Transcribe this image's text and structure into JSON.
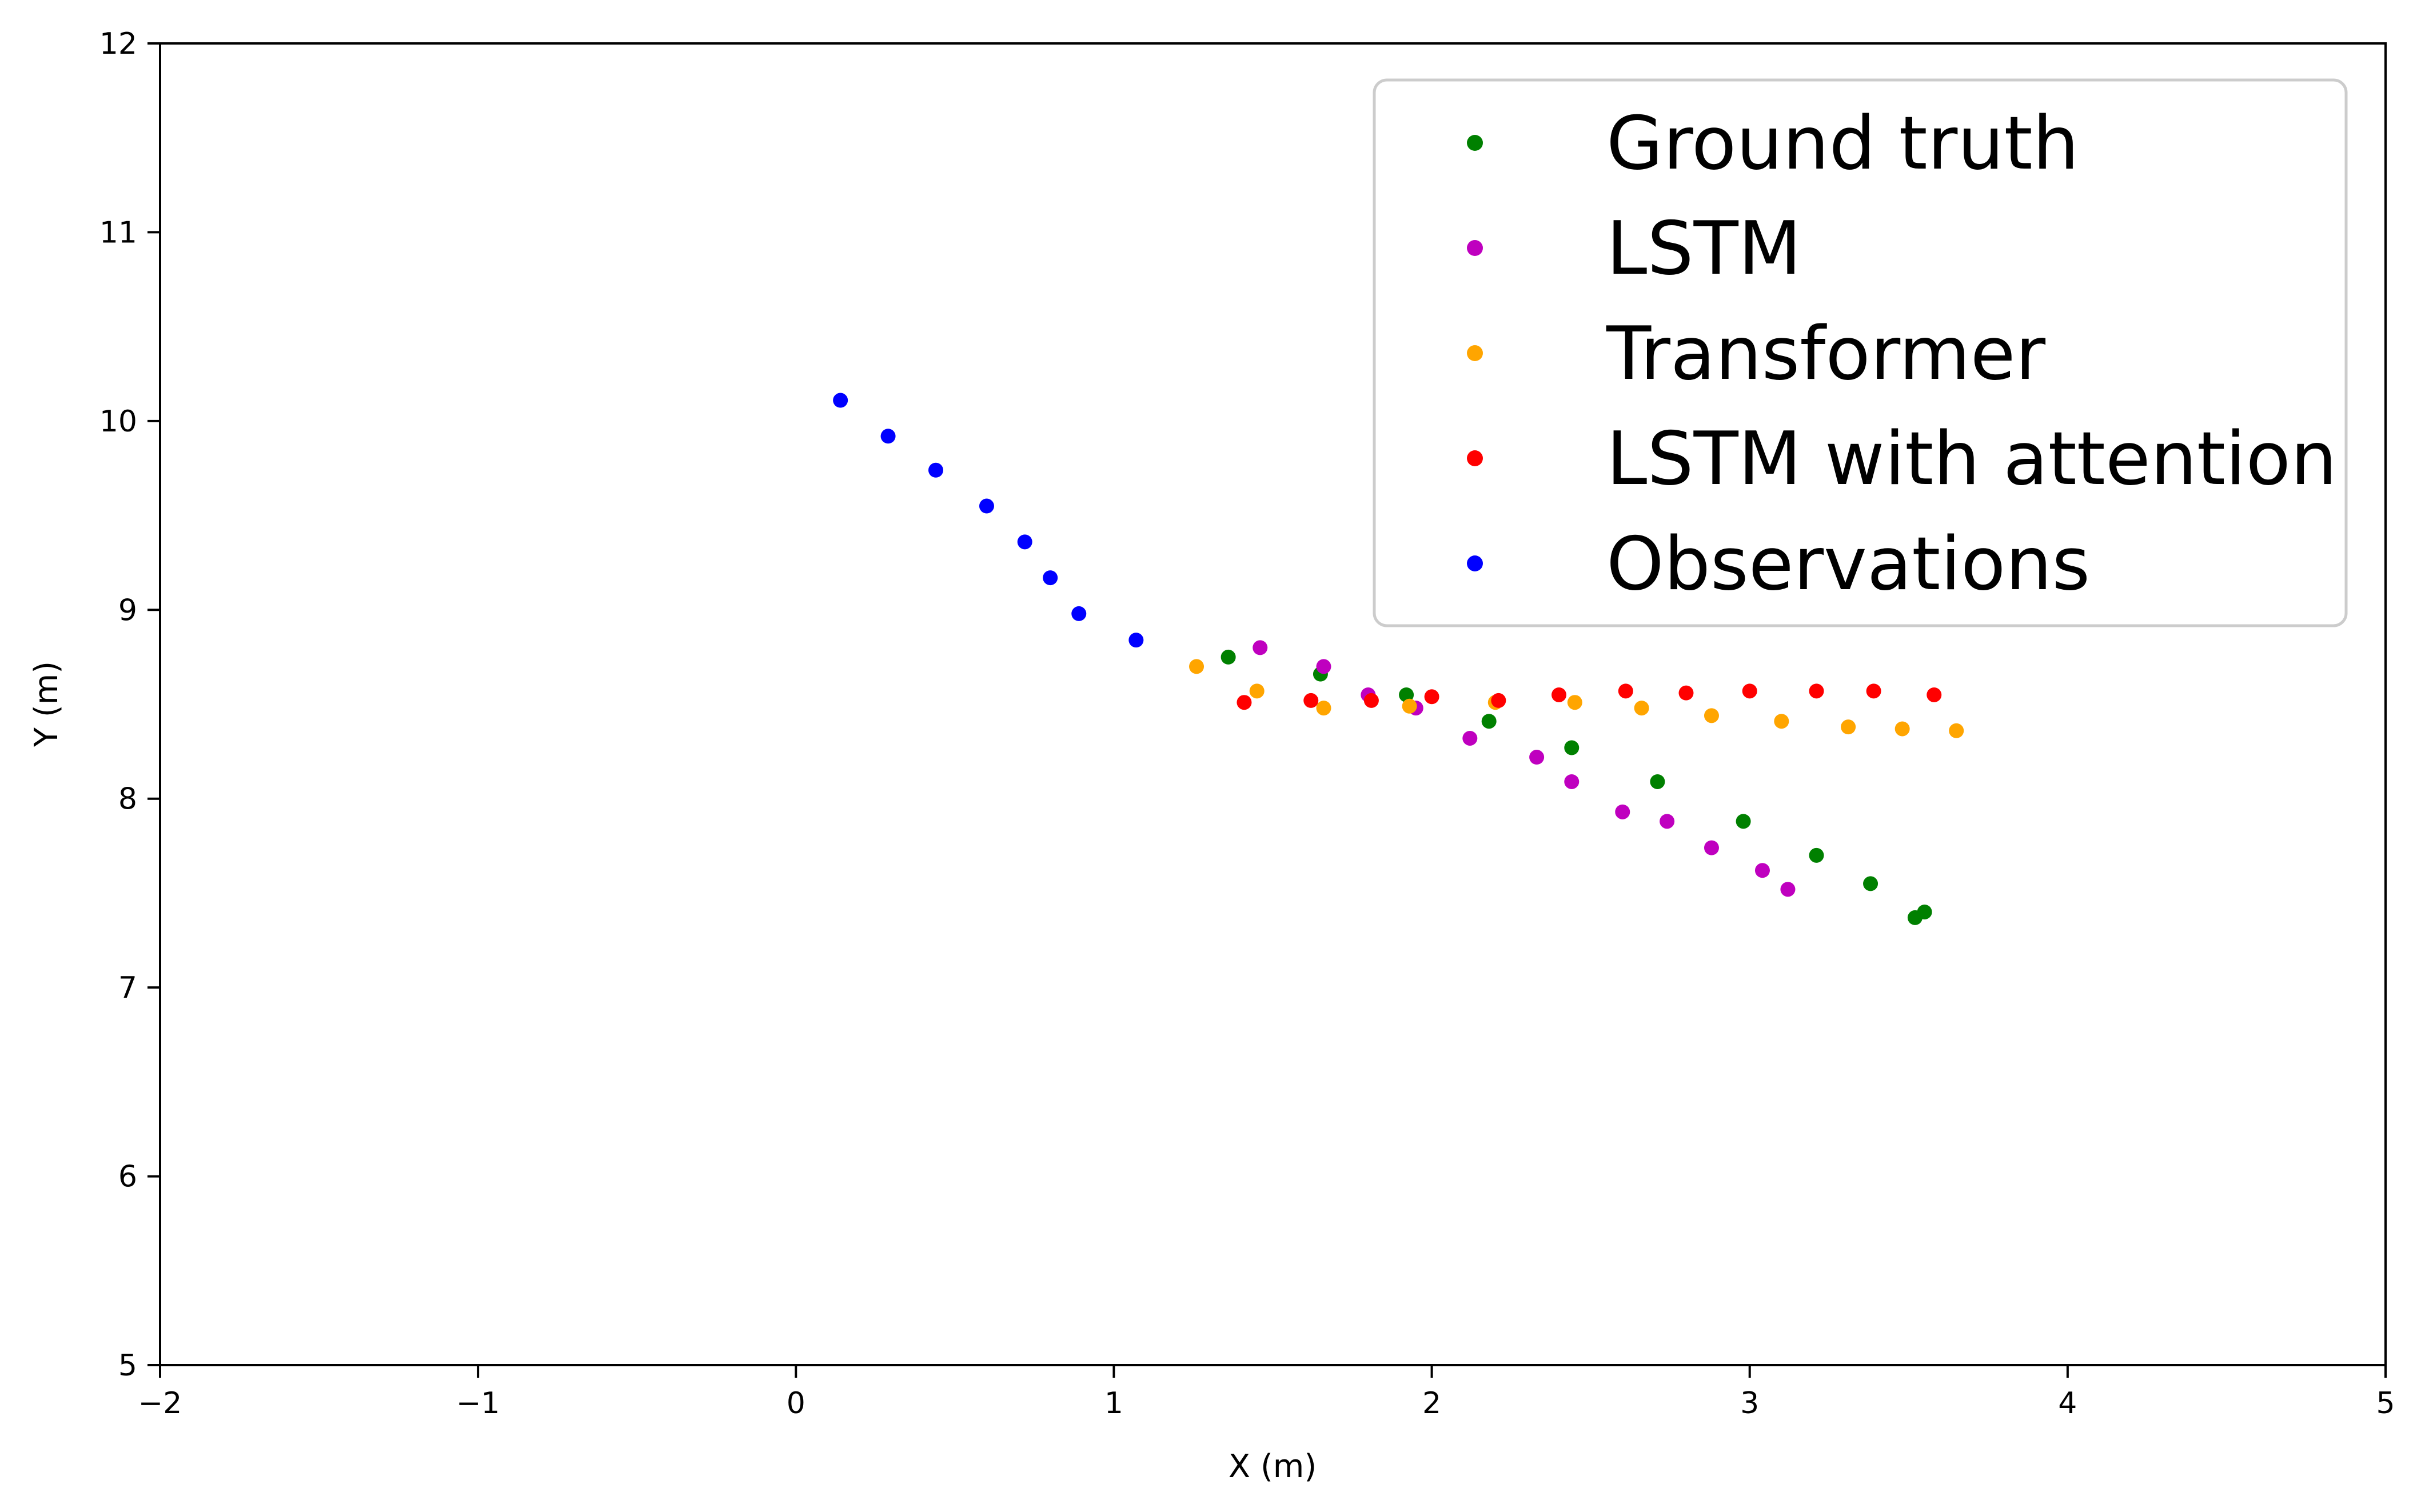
{
  "chart_data": {
    "type": "scatter",
    "xlabel": "X (m)",
    "ylabel": "Y (m)",
    "xlim": [
      -2,
      5
    ],
    "ylim": [
      5,
      12
    ],
    "xticks": [
      -2,
      -1,
      0,
      1,
      2,
      3,
      4,
      5
    ],
    "xtick_labels": [
      "−2",
      "−1",
      "0",
      "1",
      "2",
      "3",
      "4",
      "5"
    ],
    "yticks": [
      5,
      6,
      7,
      8,
      9,
      10,
      11,
      12
    ],
    "ytick_labels": [
      "5",
      "6",
      "7",
      "8",
      "9",
      "10",
      "11",
      "12"
    ],
    "grid": false,
    "legend_position": "top-right",
    "series": [
      {
        "name": "Ground truth",
        "color": "#008000",
        "x": [
          1.36,
          1.65,
          1.92,
          2.18,
          2.44,
          2.71,
          2.98,
          3.21,
          3.38,
          3.52,
          3.55
        ],
        "y": [
          8.75,
          8.66,
          8.55,
          8.41,
          8.27,
          8.09,
          7.88,
          7.7,
          7.55,
          7.37,
          7.4
        ]
      },
      {
        "name": "LSTM",
        "color": "#bf00bf",
        "x": [
          1.46,
          1.66,
          1.8,
          1.95,
          2.12,
          2.33,
          2.44,
          2.6,
          2.74,
          2.88,
          3.04,
          3.12
        ],
        "y": [
          8.8,
          8.7,
          8.55,
          8.48,
          8.32,
          8.22,
          8.09,
          7.93,
          7.88,
          7.74,
          7.62,
          7.52
        ]
      },
      {
        "name": "Transformer",
        "color": "#ffa500",
        "x": [
          1.26,
          1.45,
          1.66,
          1.93,
          2.2,
          2.45,
          2.66,
          2.88,
          3.1,
          3.31,
          3.48,
          3.65
        ],
        "y": [
          8.7,
          8.57,
          8.48,
          8.49,
          8.51,
          8.51,
          8.48,
          8.44,
          8.41,
          8.38,
          8.37,
          8.36
        ]
      },
      {
        "name": "LSTM with attention",
        "color": "#ff0000",
        "x": [
          1.41,
          1.62,
          1.81,
          2.0,
          2.21,
          2.4,
          2.61,
          2.8,
          3.0,
          3.21,
          3.39,
          3.58
        ],
        "y": [
          8.51,
          8.52,
          8.52,
          8.54,
          8.52,
          8.55,
          8.57,
          8.56,
          8.57,
          8.57,
          8.57,
          8.55
        ]
      },
      {
        "name": "Observations",
        "color": "#0000ff",
        "x": [
          0.14,
          0.29,
          0.44,
          0.6,
          0.72,
          0.8,
          0.89,
          1.07
        ],
        "y": [
          10.11,
          9.92,
          9.74,
          9.55,
          9.36,
          9.17,
          8.98,
          8.84
        ]
      }
    ]
  }
}
